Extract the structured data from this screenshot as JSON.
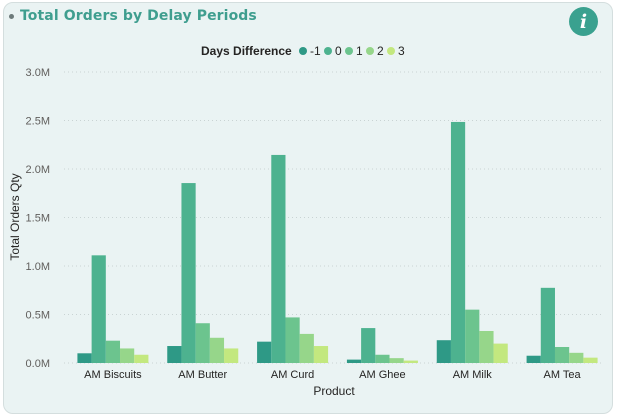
{
  "card": {
    "title": "Total Orders by Delay Periods",
    "info_icon": "info-icon",
    "info_glyph": "i"
  },
  "chart_data": {
    "type": "bar",
    "title": "Total Orders by Delay Periods",
    "xlabel": "Product",
    "ylabel": "Total Orders Qty",
    "legend_title": "Days Difference",
    "legend_position": "top-center",
    "grid": true,
    "ylim": [
      0,
      3000000
    ],
    "yticks": [
      0,
      500000,
      1000000,
      1500000,
      2000000,
      2500000,
      3000000
    ],
    "ytick_labels": [
      "0.0M",
      "0.5M",
      "1.0M",
      "1.5M",
      "2.0M",
      "2.5M",
      "3.0M"
    ],
    "categories": [
      "AM Biscuits",
      "AM Butter",
      "AM Curd",
      "AM Ghee",
      "AM Milk",
      "AM Tea"
    ],
    "series": [
      {
        "name": "-1",
        "color": "#2e9986",
        "values": [
          100000,
          175000,
          220000,
          35000,
          235000,
          75000
        ]
      },
      {
        "name": "0",
        "color": "#4db28f",
        "values": [
          1110000,
          1855000,
          2145000,
          360000,
          2485000,
          775000
        ]
      },
      {
        "name": "1",
        "color": "#6cc48e",
        "values": [
          230000,
          410000,
          470000,
          85000,
          550000,
          165000
        ]
      },
      {
        "name": "2",
        "color": "#96d68a",
        "values": [
          150000,
          260000,
          300000,
          50000,
          330000,
          105000
        ]
      },
      {
        "name": "3",
        "color": "#c3e87f",
        "values": [
          85000,
          150000,
          175000,
          25000,
          200000,
          55000
        ]
      }
    ]
  }
}
